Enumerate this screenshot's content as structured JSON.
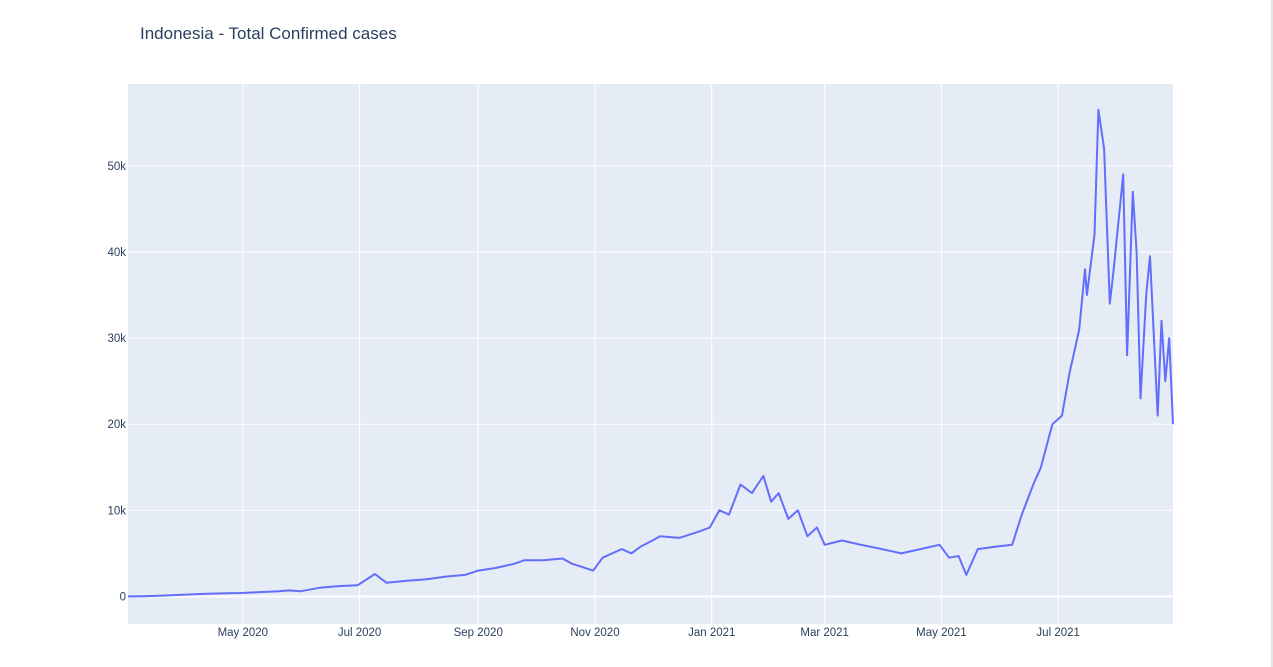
{
  "chart_data": {
    "type": "line",
    "title": "Indonesia - Total Confirmed cases",
    "xlabel": "",
    "ylabel": "",
    "x_range": [
      "2020-03-02",
      "2021-08-30"
    ],
    "ylim": [
      -3200,
      59500
    ],
    "x_ticks": [
      {
        "date": "2020-05-01",
        "label": "May 2020"
      },
      {
        "date": "2020-07-01",
        "label": "Jul 2020"
      },
      {
        "date": "2020-09-01",
        "label": "Sep 2020"
      },
      {
        "date": "2020-11-01",
        "label": "Nov 2020"
      },
      {
        "date": "2021-01-01",
        "label": "Jan 2021"
      },
      {
        "date": "2021-03-01",
        "label": "Mar 2021"
      },
      {
        "date": "2021-05-01",
        "label": "May 2021"
      },
      {
        "date": "2021-07-01",
        "label": "Jul 2021"
      }
    ],
    "y_ticks": [
      {
        "value": 0,
        "label": "0"
      },
      {
        "value": 10000,
        "label": "10k"
      },
      {
        "value": 20000,
        "label": "20k"
      },
      {
        "value": 30000,
        "label": "30k"
      },
      {
        "value": 40000,
        "label": "40k"
      },
      {
        "value": 50000,
        "label": "50k"
      }
    ],
    "grid": true,
    "legend": "none",
    "colors": {
      "line": "#636efa",
      "plot_bg": "#e5ecf6",
      "grid": "#ffffff",
      "text": "#2a3f5f"
    },
    "series": [
      {
        "x": [
          "2020-03-02",
          "2020-03-10",
          "2020-03-20",
          "2020-03-31",
          "2020-04-10",
          "2020-04-20",
          "2020-04-30",
          "2020-05-10",
          "2020-05-20",
          "2020-05-25",
          "2020-05-31",
          "2020-06-10",
          "2020-06-20",
          "2020-06-30",
          "2020-07-09",
          "2020-07-15",
          "2020-07-25",
          "2020-08-05",
          "2020-08-15",
          "2020-08-25",
          "2020-09-01",
          "2020-09-10",
          "2020-09-20",
          "2020-09-25",
          "2020-10-05",
          "2020-10-15",
          "2020-10-20",
          "2020-10-31",
          "2020-11-05",
          "2020-11-10",
          "2020-11-15",
          "2020-11-20",
          "2020-11-25",
          "2020-12-01",
          "2020-12-05",
          "2020-12-15",
          "2020-12-25",
          "2020-12-31",
          "2021-01-05",
          "2021-01-10",
          "2021-01-16",
          "2021-01-22",
          "2021-01-28",
          "2021-02-01",
          "2021-02-05",
          "2021-02-10",
          "2021-02-15",
          "2021-02-20",
          "2021-02-25",
          "2021-03-01",
          "2021-03-10",
          "2021-03-20",
          "2021-03-31",
          "2021-04-10",
          "2021-04-20",
          "2021-04-30",
          "2021-05-05",
          "2021-05-10",
          "2021-05-14",
          "2021-05-20",
          "2021-05-30",
          "2021-06-07",
          "2021-06-12",
          "2021-06-18",
          "2021-06-22",
          "2021-06-28",
          "2021-07-03",
          "2021-07-07",
          "2021-07-09",
          "2021-07-12",
          "2021-07-15",
          "2021-07-16",
          "2021-07-20",
          "2021-07-22",
          "2021-07-25",
          "2021-07-28",
          "2021-07-30",
          "2021-08-04",
          "2021-08-06",
          "2021-08-09",
          "2021-08-11",
          "2021-08-13",
          "2021-08-16",
          "2021-08-18",
          "2021-08-22",
          "2021-08-24",
          "2021-08-26",
          "2021-08-28",
          "2021-08-30"
        ],
        "values": [
          0,
          30,
          100,
          200,
          300,
          350,
          400,
          500,
          600,
          700,
          600,
          1000,
          1200,
          1300,
          2600,
          1600,
          1800,
          2000,
          2300,
          2500,
          3000,
          3300,
          3800,
          4200,
          4200,
          4400,
          3800,
          3000,
          4500,
          5000,
          5500,
          5000,
          5800,
          6500,
          7000,
          6800,
          7500,
          8000,
          10000,
          9500,
          13000,
          12000,
          14000,
          11000,
          12000,
          9000,
          10000,
          7000,
          8000,
          6000,
          6500,
          6000,
          5500,
          5000,
          5500,
          6000,
          4500,
          4700,
          2500,
          5500,
          5800,
          6000,
          9500,
          13000,
          15000,
          20000,
          21000,
          26000,
          28000,
          31000,
          38000,
          35000,
          42000,
          56500,
          52000,
          34000,
          38000,
          49000,
          28000,
          47000,
          40000,
          23000,
          35000,
          39500,
          21000,
          32000,
          25000,
          30000,
          20000
        ]
      }
    ]
  }
}
